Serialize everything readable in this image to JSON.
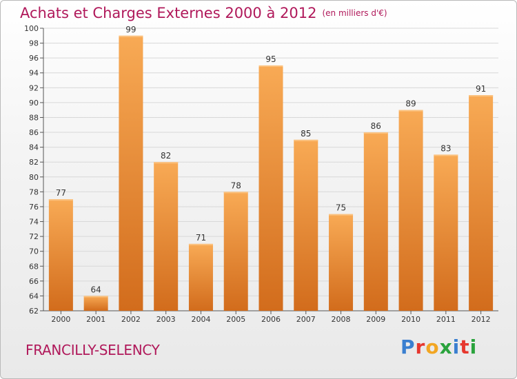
{
  "header": {
    "title": "Achats et Charges Externes 2000 à 2012",
    "subtitle": "(en milliers d'€)"
  },
  "footer": {
    "city": "FRANCILLY-SELENCY",
    "logo_text": "Proxiti",
    "logo_colors": [
      "#3a7fd0",
      "#e6372e",
      "#f2a623",
      "#2aa33d",
      "#3a7fd0",
      "#e6372e",
      "#2aa33d"
    ]
  },
  "colors": {
    "title": "#b0185a",
    "bar_light": "#f7a550",
    "bar_dark": "#d9711f",
    "grid": "#d8d8d8"
  },
  "chart_data": {
    "type": "bar",
    "title": "Achats et Charges Externes 2000 à 2012",
    "subtitle": "(en milliers d'€)",
    "categories": [
      "2000",
      "2001",
      "2002",
      "2003",
      "2004",
      "2005",
      "2006",
      "2007",
      "2008",
      "2009",
      "2010",
      "2011",
      "2012"
    ],
    "values": [
      77,
      64,
      99,
      82,
      71,
      78,
      95,
      85,
      75,
      86,
      89,
      83,
      91
    ],
    "ylim": [
      62,
      100
    ],
    "yticks": [
      62,
      64,
      66,
      68,
      70,
      72,
      74,
      76,
      78,
      80,
      82,
      84,
      86,
      88,
      90,
      92,
      94,
      96,
      98,
      100
    ],
    "grid": true,
    "xlabel": "",
    "ylabel": ""
  }
}
